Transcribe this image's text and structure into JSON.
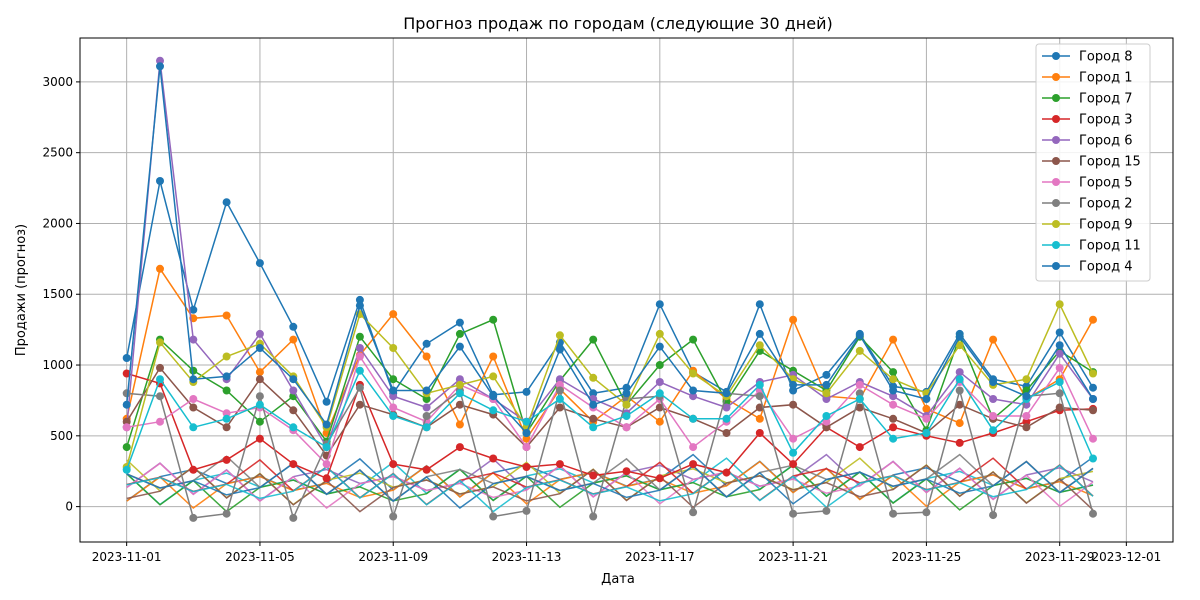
{
  "chart_data": {
    "type": "line",
    "title": "Прогноз продаж по городам (следующие 30 дней)",
    "xlabel": "Дата",
    "ylabel": "Продажи (прогноз)",
    "grid": true,
    "legend_position": "top-right",
    "x_ticks": [
      "2023-11-01",
      "2023-11-05",
      "2023-11-09",
      "2023-11-13",
      "2023-11-17",
      "2023-11-21",
      "2023-11-25",
      "2023-11-29",
      "2023-12-01"
    ],
    "y_ticks": [
      0,
      500,
      1000,
      1500,
      2000,
      2500,
      3000
    ],
    "xlim_days": [
      -1.4,
      31.4
    ],
    "ylim": [
      -250,
      3310
    ],
    "dates": [
      "2023-11-01",
      "2023-11-02",
      "2023-11-03",
      "2023-11-04",
      "2023-11-05",
      "2023-11-06",
      "2023-11-07",
      "2023-11-08",
      "2023-11-09",
      "2023-11-10",
      "2023-11-11",
      "2023-11-12",
      "2023-11-13",
      "2023-11-14",
      "2023-11-15",
      "2023-11-16",
      "2023-11-17",
      "2023-11-18",
      "2023-11-19",
      "2023-11-20",
      "2023-11-21",
      "2023-11-22",
      "2023-11-23",
      "2023-11-24",
      "2023-11-25",
      "2023-11-26",
      "2023-11-27",
      "2023-11-28",
      "2023-11-29",
      "2023-11-30"
    ],
    "series": [
      {
        "name": "Город 8",
        "color": "#1f77b4",
        "values": [
          1050,
          2300,
          1390,
          2150,
          1720,
          1270,
          740,
          1460,
          800,
          1150,
          1300,
          790,
          810,
          1160,
          800,
          840,
          1430,
          950,
          810,
          1430,
          820,
          930,
          1220,
          850,
          810,
          1220,
          900,
          850,
          1230,
          840
        ]
      },
      {
        "name": "Город 1",
        "color": "#ff7f0e",
        "values": [
          620,
          1680,
          1330,
          1350,
          950,
          1180,
          520,
          1070,
          1360,
          1060,
          580,
          1060,
          480,
          830,
          600,
          780,
          600,
          960,
          760,
          620,
          1320,
          780,
          760,
          1180,
          690,
          590,
          1180,
          760,
          900,
          1320
        ]
      },
      {
        "name": "Город 7",
        "color": "#2ca02c",
        "values": [
          420,
          1180,
          960,
          820,
          600,
          780,
          460,
          1200,
          900,
          760,
          1220,
          1320,
          520,
          890,
          1180,
          720,
          1000,
          1180,
          740,
          1100,
          960,
          820,
          1200,
          950,
          540,
          1200,
          620,
          820,
          1100,
          950
        ]
      },
      {
        "name": "Город 3",
        "color": "#d62728",
        "values": [
          940,
          870,
          260,
          330,
          480,
          300,
          200,
          860,
          300,
          260,
          420,
          340,
          280,
          300,
          220,
          250,
          200,
          300,
          240,
          520,
          300,
          560,
          420,
          560,
          500,
          450,
          520,
          600,
          680,
          690
        ]
      },
      {
        "name": "Город 6",
        "color": "#9467bd",
        "values": [
          560,
          3150,
          1180,
          900,
          1220,
          820,
          420,
          1120,
          780,
          700,
          900,
          760,
          600,
          900,
          760,
          660,
          880,
          780,
          700,
          880,
          930,
          760,
          880,
          780,
          640,
          950,
          760,
          720,
          1080,
          760
        ]
      },
      {
        "name": "Город 15",
        "color": "#8c564b",
        "values": [
          600,
          980,
          700,
          560,
          900,
          680,
          360,
          720,
          650,
          560,
          720,
          650,
          420,
          700,
          620,
          560,
          700,
          620,
          520,
          700,
          720,
          560,
          700,
          620,
          520,
          720,
          620,
          560,
          700,
          680
        ]
      },
      {
        "name": "Город 5",
        "color": "#e377c2",
        "values": [
          560,
          600,
          760,
          660,
          700,
          540,
          300,
          1060,
          700,
          600,
          860,
          760,
          420,
          860,
          700,
          560,
          760,
          420,
          600,
          820,
          480,
          600,
          860,
          720,
          620,
          880,
          640,
          640,
          980,
          480
        ]
      },
      {
        "name": "Город 2",
        "color": "#7f7f7f",
        "values": [
          800,
          780,
          -80,
          -50,
          780,
          -80,
          440,
          840,
          -70,
          640,
          820,
          -70,
          -30,
          820,
          -70,
          760,
          780,
          -40,
          800,
          780,
          -50,
          -30,
          800,
          -50,
          -40,
          820,
          -60,
          780,
          800,
          -50
        ]
      },
      {
        "name": "Город 9",
        "color": "#bcbd22",
        "values": [
          280,
          1160,
          880,
          1060,
          1150,
          920,
          560,
          1360,
          1120,
          800,
          860,
          920,
          560,
          1210,
          910,
          720,
          1220,
          940,
          780,
          1140,
          900,
          800,
          1100,
          900,
          800,
          1140,
          860,
          900,
          1430,
          940
        ]
      },
      {
        "name": "Город 11",
        "color": "#17becf",
        "values": [
          260,
          900,
          560,
          620,
          720,
          560,
          420,
          960,
          640,
          560,
          800,
          680,
          600,
          760,
          560,
          640,
          800,
          620,
          620,
          860,
          380,
          640,
          760,
          480,
          520,
          900,
          540,
          760,
          880,
          340
        ]
      },
      {
        "name": "Город 4",
        "color": "#1f77b4",
        "values": [
          720,
          3110,
          900,
          920,
          1120,
          900,
          580,
          1420,
          820,
          820,
          1130,
          780,
          520,
          1110,
          720,
          800,
          1130,
          820,
          800,
          1220,
          860,
          860,
          1210,
          820,
          760,
          1200,
          880,
          780,
          1140,
          760
        ]
      }
    ]
  }
}
